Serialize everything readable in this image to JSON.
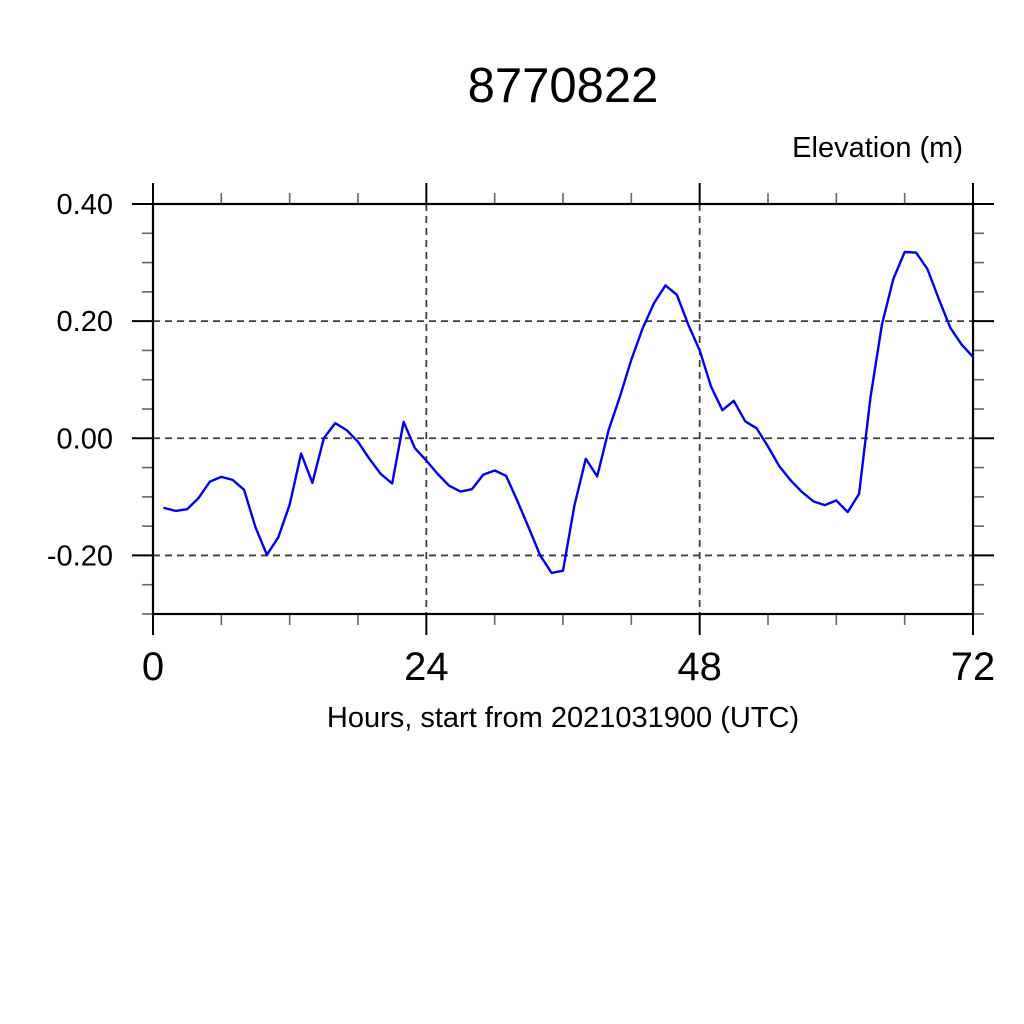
{
  "chart_data": {
    "type": "line",
    "title": "8770822",
    "ylabel": "Elevation (m)",
    "xlabel": "Hours, start from 2021031900 (UTC)",
    "xlim": [
      0,
      72
    ],
    "ylim": [
      -0.3,
      0.4
    ],
    "x_ticks": [
      {
        "v": 0,
        "label": "0"
      },
      {
        "v": 24,
        "label": "24"
      },
      {
        "v": 48,
        "label": "48"
      },
      {
        "v": 72,
        "label": "72"
      }
    ],
    "y_ticks": [
      {
        "v": 0.4,
        "label": "0.40"
      },
      {
        "v": 0.2,
        "label": "0.20"
      },
      {
        "v": 0.0,
        "label": "0.00"
      },
      {
        "v": -0.2,
        "label": "-0.20"
      }
    ],
    "x_minor_step": 6,
    "y_minor_step": 0.05,
    "grid": {
      "x_values": [
        24,
        48
      ],
      "y_values": [
        -0.2,
        0.0,
        0.2,
        0.4
      ],
      "style": "dashed"
    },
    "legend": "none",
    "colors": {
      "line": "#0000EE",
      "frame": "#000000",
      "grid": "#3f3f3f",
      "major_tick": "#000000",
      "minor_tick": "#666666"
    },
    "series": [
      {
        "name": "elevation",
        "x": [
          1,
          2,
          3,
          4,
          5,
          6,
          7,
          8,
          9,
          10,
          11,
          12,
          13,
          14,
          15,
          16,
          17,
          18,
          19,
          20,
          21,
          22,
          23,
          24,
          25,
          26,
          27,
          28,
          29,
          30,
          31,
          32,
          33,
          34,
          35,
          36,
          37,
          38,
          39,
          40,
          41,
          42,
          43,
          44,
          45,
          46,
          47,
          48,
          49,
          50,
          51,
          52,
          53,
          54,
          55,
          56,
          57,
          58,
          59,
          60,
          61,
          62,
          63,
          64,
          65,
          66,
          67,
          68,
          69,
          70,
          71,
          72
        ],
        "y": [
          -0.119,
          -0.124,
          -0.121,
          -0.102,
          -0.074,
          -0.066,
          -0.071,
          -0.088,
          -0.152,
          -0.199,
          -0.169,
          -0.113,
          -0.026,
          -0.076,
          0.0,
          0.026,
          0.014,
          -0.006,
          -0.035,
          -0.061,
          -0.077,
          0.028,
          -0.017,
          -0.038,
          -0.061,
          -0.081,
          -0.091,
          -0.087,
          -0.062,
          -0.055,
          -0.064,
          -0.107,
          -0.153,
          -0.2,
          -0.23,
          -0.226,
          -0.115,
          -0.035,
          -0.065,
          0.014,
          0.071,
          0.134,
          0.188,
          0.231,
          0.261,
          0.245,
          0.194,
          0.15,
          0.088,
          0.048,
          0.064,
          0.029,
          0.017,
          -0.014,
          -0.048,
          -0.072,
          -0.092,
          -0.108,
          -0.114,
          -0.106,
          -0.126,
          -0.095,
          0.07,
          0.194,
          0.272,
          0.318,
          0.317,
          0.289,
          0.238,
          0.189,
          0.16,
          0.139
        ]
      }
    ]
  }
}
